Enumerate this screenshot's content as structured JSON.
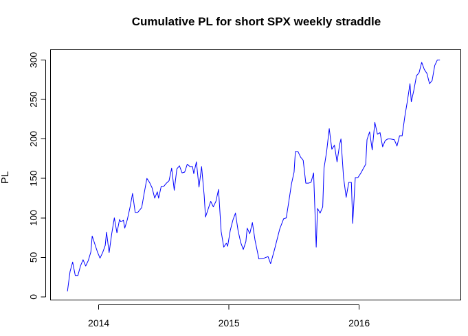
{
  "chart_data": {
    "type": "line",
    "title": "Cumulative PL for short SPX weekly straddle",
    "xlabel": "",
    "ylabel": "PL",
    "x_ticks": [
      {
        "x": 2014.0,
        "label": "2014"
      },
      {
        "x": 2015.0,
        "label": "2015"
      },
      {
        "x": 2016.0,
        "label": "2016"
      }
    ],
    "y_ticks": [
      0,
      50,
      100,
      150,
      200,
      250,
      300
    ],
    "xlim": [
      2013.63,
      2016.78
    ],
    "ylim": [
      -4,
      313
    ],
    "grid": false,
    "legend": "none",
    "series": [
      {
        "color": "#0000ff",
        "points": [
          [
            2013.76,
            7
          ],
          [
            2013.78,
            32
          ],
          [
            2013.8,
            44
          ],
          [
            2013.82,
            27
          ],
          [
            2013.84,
            27
          ],
          [
            2013.86,
            39
          ],
          [
            2013.88,
            47
          ],
          [
            2013.9,
            39
          ],
          [
            2013.92,
            46
          ],
          [
            2013.94,
            57
          ],
          [
            2013.95,
            77
          ],
          [
            2013.97,
            67
          ],
          [
            2013.99,
            57
          ],
          [
            2014.01,
            49
          ],
          [
            2014.03,
            56
          ],
          [
            2014.05,
            65
          ],
          [
            2014.06,
            82
          ],
          [
            2014.08,
            56
          ],
          [
            2014.1,
            80
          ],
          [
            2014.12,
            100
          ],
          [
            2014.14,
            81
          ],
          [
            2014.16,
            98
          ],
          [
            2014.17,
            95
          ],
          [
            2014.19,
            97
          ],
          [
            2014.2,
            87
          ],
          [
            2014.22,
            98
          ],
          [
            2014.24,
            113
          ],
          [
            2014.26,
            131
          ],
          [
            2014.28,
            107
          ],
          [
            2014.3,
            107
          ],
          [
            2014.32,
            111
          ],
          [
            2014.33,
            113
          ],
          [
            2014.35,
            132
          ],
          [
            2014.37,
            150
          ],
          [
            2014.39,
            145
          ],
          [
            2014.41,
            138
          ],
          [
            2014.43,
            125
          ],
          [
            2014.45,
            133
          ],
          [
            2014.46,
            125
          ],
          [
            2014.48,
            140
          ],
          [
            2014.5,
            140
          ],
          [
            2014.52,
            144
          ],
          [
            2014.54,
            147
          ],
          [
            2014.56,
            163
          ],
          [
            2014.58,
            135
          ],
          [
            2014.6,
            162
          ],
          [
            2014.62,
            166
          ],
          [
            2014.64,
            157
          ],
          [
            2014.66,
            158
          ],
          [
            2014.68,
            168
          ],
          [
            2014.7,
            165
          ],
          [
            2014.72,
            165
          ],
          [
            2014.73,
            156
          ],
          [
            2014.75,
            171
          ],
          [
            2014.77,
            139
          ],
          [
            2014.79,
            165
          ],
          [
            2014.81,
            128
          ],
          [
            2014.82,
            101
          ],
          [
            2014.84,
            111
          ],
          [
            2014.86,
            121
          ],
          [
            2014.88,
            114
          ],
          [
            2014.9,
            121
          ],
          [
            2014.92,
            136
          ],
          [
            2014.94,
            83
          ],
          [
            2014.96,
            63
          ],
          [
            2014.98,
            68
          ],
          [
            2014.99,
            64
          ],
          [
            2015.01,
            84
          ],
          [
            2015.03,
            97
          ],
          [
            2015.05,
            106
          ],
          [
            2015.07,
            84
          ],
          [
            2015.09,
            69
          ],
          [
            2015.11,
            60
          ],
          [
            2015.13,
            70
          ],
          [
            2015.14,
            87
          ],
          [
            2015.16,
            80
          ],
          [
            2015.18,
            94
          ],
          [
            2015.2,
            72
          ],
          [
            2015.23,
            48
          ],
          [
            2015.27,
            49
          ],
          [
            2015.3,
            51
          ],
          [
            2015.32,
            42
          ],
          [
            2015.35,
            60
          ],
          [
            2015.39,
            86
          ],
          [
            2015.42,
            99
          ],
          [
            2015.44,
            100
          ],
          [
            2015.46,
            121
          ],
          [
            2015.48,
            143
          ],
          [
            2015.5,
            158
          ],
          [
            2015.51,
            184
          ],
          [
            2015.53,
            184
          ],
          [
            2015.55,
            177
          ],
          [
            2015.57,
            173
          ],
          [
            2015.59,
            144
          ],
          [
            2015.61,
            144
          ],
          [
            2015.63,
            145
          ],
          [
            2015.65,
            157
          ],
          [
            2015.67,
            63
          ],
          [
            2015.68,
            112
          ],
          [
            2015.7,
            106
          ],
          [
            2015.72,
            114
          ],
          [
            2015.73,
            163
          ],
          [
            2015.75,
            184
          ],
          [
            2015.77,
            213
          ],
          [
            2015.79,
            187
          ],
          [
            2015.81,
            192
          ],
          [
            2015.83,
            171
          ],
          [
            2015.85,
            193
          ],
          [
            2015.86,
            200
          ],
          [
            2015.88,
            151
          ],
          [
            2015.9,
            126
          ],
          [
            2015.92,
            145
          ],
          [
            2015.94,
            145
          ],
          [
            2015.95,
            93
          ],
          [
            2015.97,
            151
          ],
          [
            2015.99,
            151
          ],
          [
            2016.01,
            156
          ],
          [
            2016.05,
            168
          ],
          [
            2016.06,
            199
          ],
          [
            2016.08,
            209
          ],
          [
            2016.1,
            186
          ],
          [
            2016.12,
            221
          ],
          [
            2016.14,
            206
          ],
          [
            2016.16,
            208
          ],
          [
            2016.18,
            190
          ],
          [
            2016.2,
            198
          ],
          [
            2016.22,
            200
          ],
          [
            2016.24,
            200
          ],
          [
            2016.27,
            199
          ],
          [
            2016.29,
            191
          ],
          [
            2016.31,
            204
          ],
          [
            2016.33,
            204
          ],
          [
            2016.35,
            228
          ],
          [
            2016.37,
            248
          ],
          [
            2016.39,
            270
          ],
          [
            2016.4,
            247
          ],
          [
            2016.42,
            262
          ],
          [
            2016.44,
            280
          ],
          [
            2016.46,
            284
          ],
          [
            2016.48,
            297
          ],
          [
            2016.5,
            288
          ],
          [
            2016.52,
            283
          ],
          [
            2016.54,
            270
          ],
          [
            2016.56,
            274
          ],
          [
            2016.58,
            293
          ],
          [
            2016.6,
            300
          ],
          [
            2016.62,
            300
          ]
        ]
      }
    ]
  }
}
